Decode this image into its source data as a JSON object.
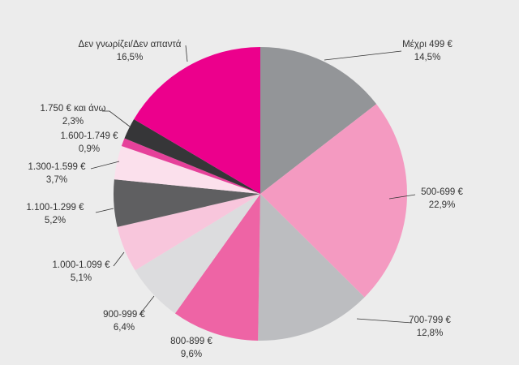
{
  "chart_data": {
    "type": "pie",
    "title": "",
    "start": "top",
    "direction": "clockwise",
    "legend": "none",
    "slices": [
      {
        "label": "Μέχρι 499 €",
        "value": 14.5,
        "value_label": "14,5%",
        "color": "#939598"
      },
      {
        "label": "500-699 €",
        "value": 22.9,
        "value_label": "22,9%",
        "color": "#f49ac1"
      },
      {
        "label": "700-799 €",
        "value": 12.8,
        "value_label": "12,8%",
        "color": "#bcbdc0"
      },
      {
        "label": "800-899 €",
        "value": 9.6,
        "value_label": "9,6%",
        "color": "#ee64a5"
      },
      {
        "label": "900-999 €",
        "value": 6.4,
        "value_label": "6,4%",
        "color": "#dcdcde"
      },
      {
        "label": "1.000-1.099 €",
        "value": 5.1,
        "value_label": "5,1%",
        "color": "#f8c6dc"
      },
      {
        "label": "1.100-1.299 €",
        "value": 5.2,
        "value_label": "5,2%",
        "color": "#5f5f61"
      },
      {
        "label": "1.300-1.599 €",
        "value": 3.7,
        "value_label": "3,7%",
        "color": "#fbe0ec"
      },
      {
        "label": "1.600-1.749 €",
        "value": 0.9,
        "value_label": "0,9%",
        "color": "#e6419a"
      },
      {
        "label": "1.750 €  και άνω",
        "value": 2.3,
        "value_label": "2,3%",
        "color": "#363638"
      },
      {
        "label": "Δεν γνωρίζει/Δεν απαντά",
        "value": 16.5,
        "value_label": "16,5%",
        "color": "#ec008c"
      }
    ]
  }
}
